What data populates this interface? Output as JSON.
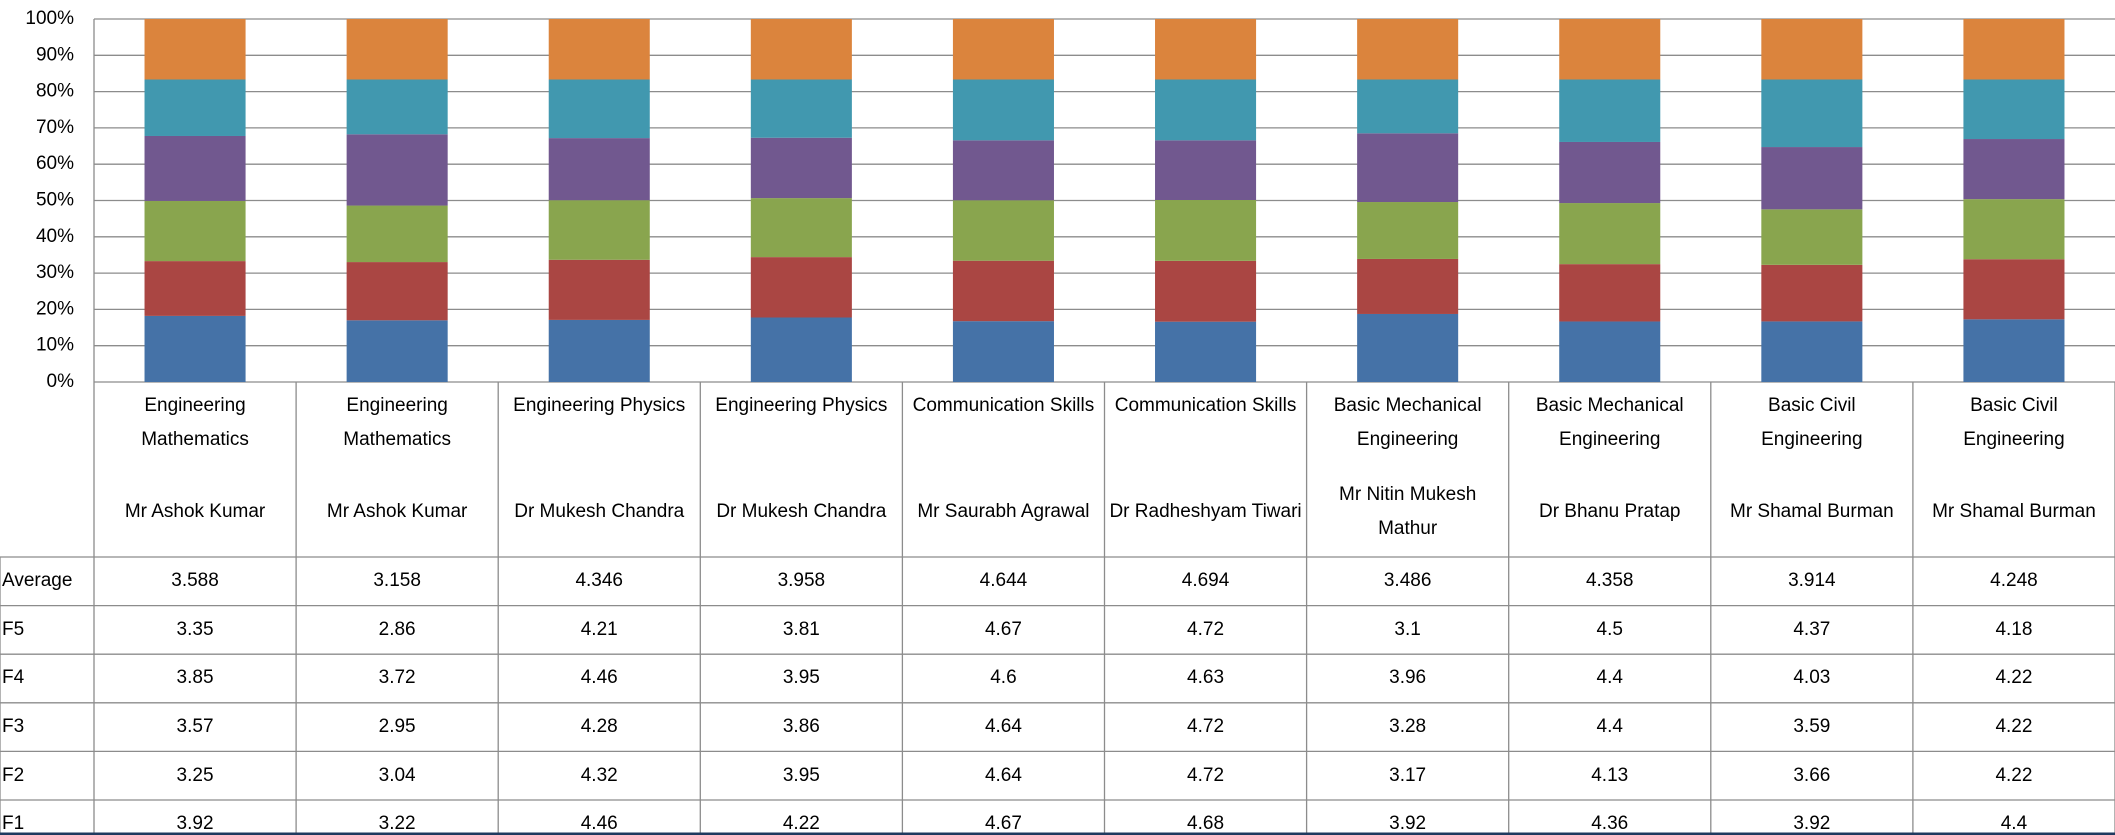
{
  "chart_data": {
    "type": "stacked_bar_percent",
    "categories": [
      [
        "Engineering Mathematics",
        "Mr Ashok Kumar"
      ],
      [
        "Engineering Mathematics",
        "Mr Ashok Kumar"
      ],
      [
        "Engineering Physics",
        "Dr Mukesh Chandra"
      ],
      [
        "Engineering Physics",
        "Dr Mukesh Chandra"
      ],
      [
        "Communication Skills",
        "Mr Saurabh Agrawal"
      ],
      [
        "Communication Skills",
        "Dr Radheshyam Tiwari"
      ],
      [
        "Basic Mechanical Engineering",
        "Mr Nitin Mukesh Mathur"
      ],
      [
        "Basic Mechanical Engineering",
        "Dr Bhanu  Pratap"
      ],
      [
        "Basic Civil Engineering",
        "Mr Shamal Burman"
      ],
      [
        "Basic Civil Engineering",
        "Mr Shamal Burman"
      ]
    ],
    "series": [
      {
        "name": "Average",
        "color": "#db843d",
        "values": [
          3.588,
          3.158,
          4.346,
          3.958,
          4.644,
          4.694,
          3.486,
          4.358,
          3.914,
          4.248
        ]
      },
      {
        "name": "F5",
        "color": "#4198af",
        "values": [
          3.35,
          2.86,
          4.21,
          3.81,
          4.67,
          4.72,
          3.1,
          4.5,
          4.37,
          4.18
        ]
      },
      {
        "name": "F4",
        "color": "#71588f",
        "values": [
          3.85,
          3.72,
          4.46,
          3.95,
          4.6,
          4.63,
          3.96,
          4.4,
          4.03,
          4.22
        ]
      },
      {
        "name": "F3",
        "color": "#89a54e",
        "values": [
          3.57,
          2.95,
          4.28,
          3.86,
          4.64,
          4.72,
          3.28,
          4.4,
          3.59,
          4.22
        ]
      },
      {
        "name": "F2",
        "color": "#aa4643",
        "values": [
          3.25,
          3.04,
          4.32,
          3.95,
          4.64,
          4.72,
          3.17,
          4.13,
          3.66,
          4.22
        ]
      },
      {
        "name": "F1",
        "color": "#4572a7",
        "values": [
          3.92,
          3.22,
          4.46,
          4.22,
          4.67,
          4.68,
          3.92,
          4.36,
          3.92,
          4.4
        ]
      }
    ],
    "ylim": [
      0,
      100
    ],
    "yticks": [
      {
        "value": 0,
        "label": "0%"
      },
      {
        "value": 10,
        "label": "10%"
      },
      {
        "value": 20,
        "label": "20%"
      },
      {
        "value": 30,
        "label": "30%"
      },
      {
        "value": 40,
        "label": "40%"
      },
      {
        "value": 50,
        "label": "50%"
      },
      {
        "value": 60,
        "label": "60%"
      },
      {
        "value": 70,
        "label": "70%"
      },
      {
        "value": 80,
        "label": "80%"
      },
      {
        "value": 90,
        "label": "90%"
      },
      {
        "value": 100,
        "label": "100%"
      }
    ],
    "grid": true
  }
}
